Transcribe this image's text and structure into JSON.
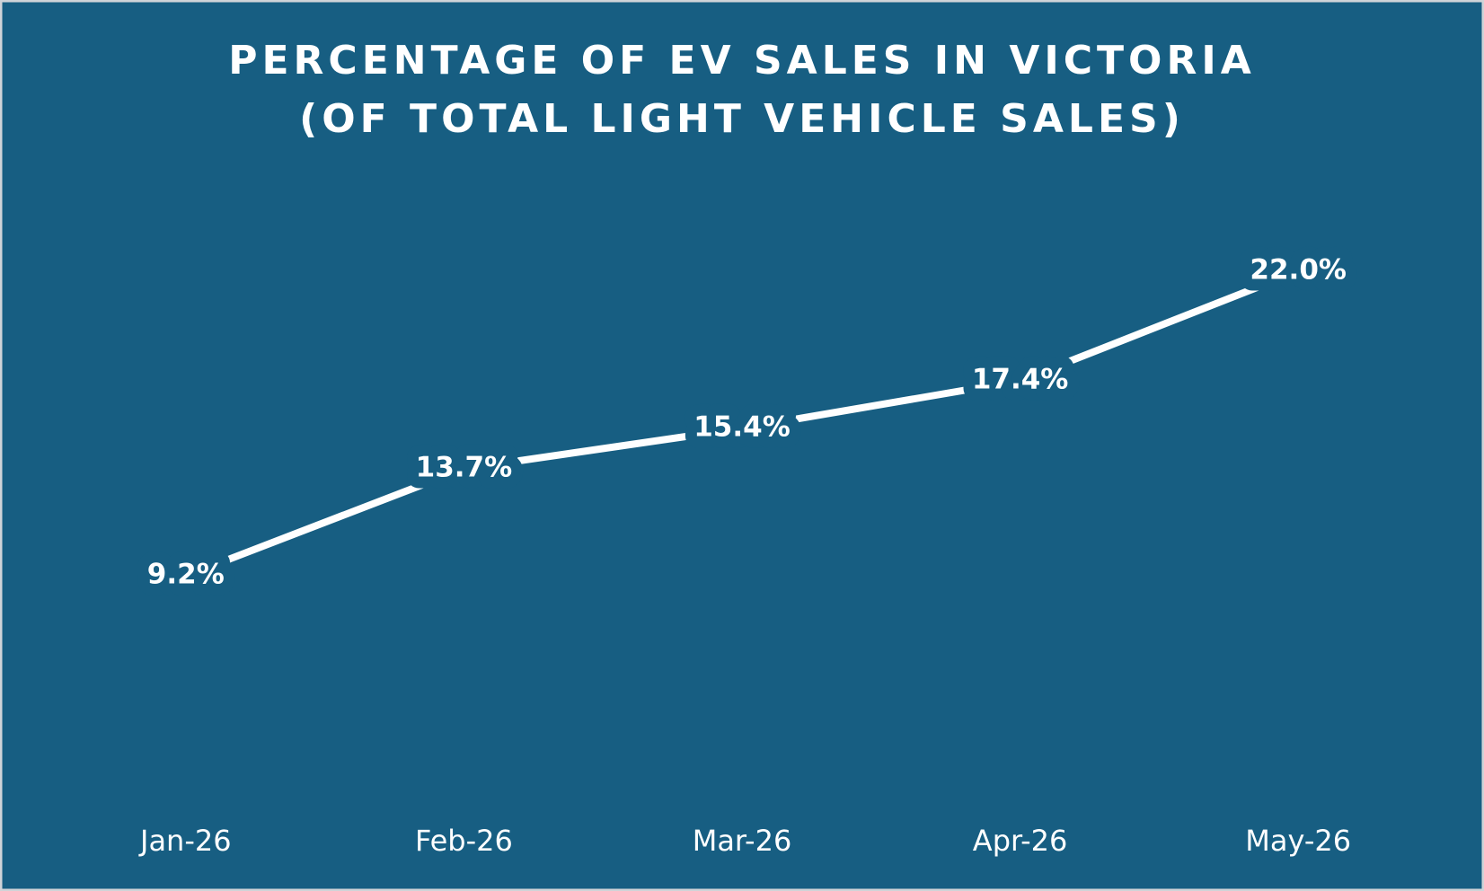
{
  "chart_data": {
    "type": "line",
    "title": "PERCENTAGE OF EV SALES IN VICTORIA",
    "subtitle": "(OF TOTAL LIGHT VEHICLE SALES)",
    "categories": [
      "Jan-26",
      "Feb-26",
      "Mar-26",
      "Apr-26",
      "May-26"
    ],
    "values": [
      9.2,
      13.7,
      15.4,
      17.4,
      22.0
    ],
    "value_labels": [
      "9.2%",
      "13.7%",
      "15.4%",
      "17.4%",
      "22.0%"
    ],
    "color": "#ffffff",
    "background": "#175e82",
    "drop_lines": true
  }
}
